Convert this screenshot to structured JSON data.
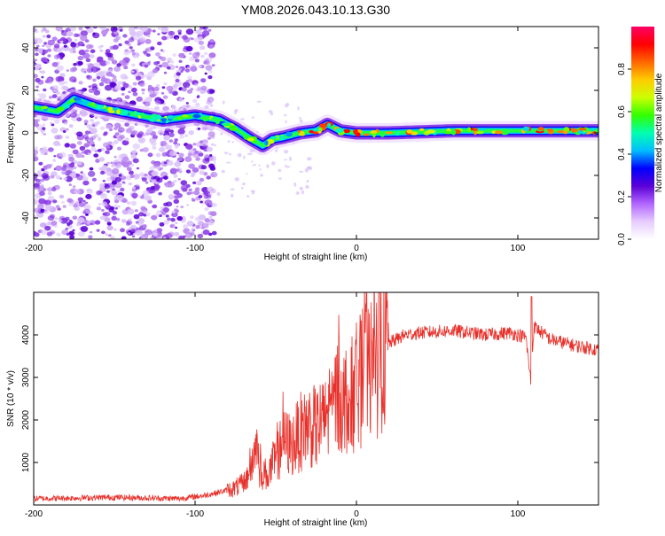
{
  "title": "YM08.2026.043.10.13.G30",
  "colors": {
    "snr_line": "#e8302a",
    "frame": "#000000",
    "background": "#ffffff",
    "scatter_purple": "#7a1fd6"
  },
  "chart_data": [
    {
      "id": "spectrogram",
      "type": "heatmap",
      "xlabel": "Height of straight line (km)",
      "ylabel": "Frequency (Hz)",
      "xlim": [
        -200,
        150
      ],
      "ylim": [
        -50,
        50
      ],
      "xticks": [
        -200,
        -100,
        0,
        100
      ],
      "yticks": [
        -40,
        -20,
        0,
        20,
        40
      ],
      "ridge_trace": {
        "x": [
          -200,
          -185,
          -175,
          -160,
          -140,
          -120,
          -100,
          -85,
          -75,
          -65,
          -58,
          -52,
          -45,
          -35,
          -25,
          -18,
          -10,
          0,
          20,
          60,
          100,
          150
        ],
        "y": [
          12,
          10,
          16,
          12,
          9,
          6,
          8,
          6,
          2,
          -3,
          -6,
          -3,
          -2,
          0,
          1,
          4,
          1,
          0,
          0,
          1,
          1,
          1
        ]
      },
      "colorbar": {
        "label": "Normalized spectral amplitude",
        "range": [
          0,
          1
        ],
        "ticks": [
          0.0,
          0.2,
          0.4,
          0.6,
          0.8
        ],
        "tick_labels": [
          "0.0",
          "0.2",
          "0.4",
          "0.6",
          "0.8"
        ],
        "colormap": [
          "#ffffff",
          "#e6ccff",
          "#b266ff",
          "#5a00d6",
          "#0000ff",
          "#00bfff",
          "#00ffb0",
          "#33ff00",
          "#ccff00",
          "#ffcc00",
          "#ff6600",
          "#ff0000",
          "#ff0066"
        ]
      }
    },
    {
      "id": "snr",
      "type": "line",
      "xlabel": "Height of straight line (km)",
      "ylabel": "SNR (10 * v/v)",
      "xlim": [
        -200,
        150
      ],
      "ylim": [
        0,
        5000
      ],
      "xticks": [
        -200,
        -100,
        0,
        100
      ],
      "yticks": [
        1000,
        2000,
        3000,
        4000
      ],
      "series": [
        {
          "name": "SNR",
          "x": [
            -200,
            -150,
            -110,
            -95,
            -85,
            -75,
            -70,
            -65,
            -62,
            -60,
            -55,
            -50,
            -45,
            -40,
            -35,
            -30,
            -25,
            -20,
            -15,
            -10,
            -5,
            0,
            10,
            20,
            30,
            40,
            60,
            80,
            95,
            105,
            108,
            110,
            120,
            135,
            150
          ],
          "y": [
            150,
            180,
            150,
            220,
            300,
            400,
            500,
            900,
            1500,
            800,
            700,
            1100,
            1500,
            1400,
            1700,
            1900,
            1800,
            2000,
            2400,
            2600,
            2400,
            2800,
            3300,
            3800,
            4000,
            4050,
            4100,
            4000,
            4050,
            3950,
            2900,
            4200,
            3900,
            3750,
            3650
          ]
        }
      ]
    }
  ]
}
